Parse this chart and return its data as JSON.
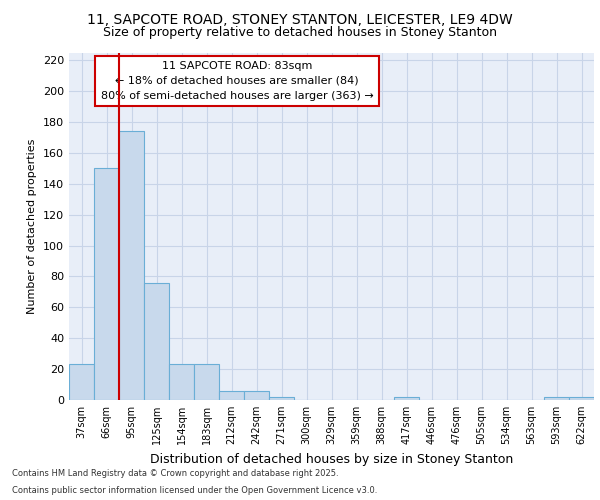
{
  "title1": "11, SAPCOTE ROAD, STONEY STANTON, LEICESTER, LE9 4DW",
  "title2": "Size of property relative to detached houses in Stoney Stanton",
  "xlabel": "Distribution of detached houses by size in Stoney Stanton",
  "ylabel": "Number of detached properties",
  "categories": [
    "37sqm",
    "66sqm",
    "95sqm",
    "125sqm",
    "154sqm",
    "183sqm",
    "212sqm",
    "242sqm",
    "271sqm",
    "300sqm",
    "329sqm",
    "359sqm",
    "388sqm",
    "417sqm",
    "446sqm",
    "476sqm",
    "505sqm",
    "534sqm",
    "563sqm",
    "593sqm",
    "622sqm"
  ],
  "values": [
    23,
    150,
    174,
    76,
    23,
    23,
    6,
    6,
    2,
    0,
    0,
    0,
    0,
    2,
    0,
    0,
    0,
    0,
    0,
    2,
    2
  ],
  "bar_color": "#c8d9ec",
  "bar_edge_color": "#6aaed6",
  "grid_color": "#c8d4e8",
  "background_color": "#e8eef8",
  "vline_color": "#cc0000",
  "annotation_text": "11 SAPCOTE ROAD: 83sqm\n← 18% of detached houses are smaller (84)\n80% of semi-detached houses are larger (363) →",
  "annotation_box_color": "#cc0000",
  "annotation_text_color": "#000000",
  "footer1": "Contains HM Land Registry data © Crown copyright and database right 2025.",
  "footer2": "Contains public sector information licensed under the Open Government Licence v3.0.",
  "ylim": [
    0,
    225
  ],
  "yticks": [
    0,
    20,
    40,
    60,
    80,
    100,
    120,
    140,
    160,
    180,
    200,
    220
  ]
}
